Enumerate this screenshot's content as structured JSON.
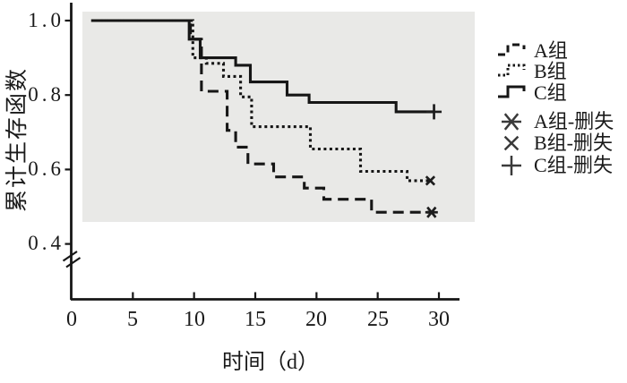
{
  "figure": {
    "background": "#ffffff",
    "plot_background": "#e9e9e7",
    "line_color": "#161616",
    "marker_color": "#3a3a3a",
    "text_color": "#1a1a1a"
  },
  "y_axis": {
    "label": "累计生存函数",
    "ticks": [
      "1.0",
      "0.8",
      "0.6",
      "0.4"
    ],
    "tick_values": [
      1.0,
      0.8,
      0.6,
      0.4
    ],
    "axis_break": true
  },
  "x_axis": {
    "label": "时间（d）",
    "ticks": [
      "0",
      "5",
      "10",
      "15",
      "20",
      "25",
      "30"
    ],
    "tick_values": [
      0,
      5,
      10,
      15,
      20,
      25,
      30
    ]
  },
  "legend": {
    "items": [
      {
        "label": "A组",
        "type": "line",
        "dash": "dashed"
      },
      {
        "label": "B组",
        "type": "line",
        "dash": "dotted"
      },
      {
        "label": "C组",
        "type": "line",
        "dash": "solid"
      },
      {
        "label": "A组-删失",
        "type": "marker",
        "marker": "star"
      },
      {
        "label": "B组-删失",
        "type": "marker",
        "marker": "x"
      },
      {
        "label": "C组-删失",
        "type": "marker",
        "marker": "plus"
      }
    ]
  },
  "chart_data": {
    "type": "line",
    "subtype": "kaplan-meier-step",
    "title": "",
    "xlabel": "时间（d）",
    "ylabel": "累计生存函数",
    "xlim": [
      0,
      31.7
    ],
    "ylim_shown": [
      0.4,
      1.0
    ],
    "axis_break_below": 0.4,
    "grid": false,
    "legend_position": "right",
    "series": [
      {
        "name": "C组",
        "style": "solid",
        "censor_marker": "plus",
        "start": [
          1.6,
          1.0
        ],
        "steps": [
          [
            9.6,
            0.95
          ],
          [
            10.5,
            0.9
          ],
          [
            13.4,
            0.88
          ],
          [
            14.6,
            0.835
          ],
          [
            17.6,
            0.8
          ],
          [
            19.4,
            0.78
          ],
          [
            26.5,
            0.755
          ]
        ],
        "end_t": 29.6,
        "censored_at": [
          [
            29.6,
            0.755
          ]
        ]
      },
      {
        "name": "B组",
        "style": "dotted",
        "censor_marker": "x",
        "start": [
          1.6,
          1.0
        ],
        "steps": [
          [
            9.9,
            0.9
          ],
          [
            11.0,
            0.885
          ],
          [
            12.4,
            0.85
          ],
          [
            13.8,
            0.795
          ],
          [
            14.7,
            0.715
          ],
          [
            19.5,
            0.655
          ],
          [
            23.6,
            0.595
          ],
          [
            27.4,
            0.57
          ]
        ],
        "end_t": 29.3,
        "censored_at": [
          [
            29.3,
            0.57
          ]
        ]
      },
      {
        "name": "A组",
        "style": "dashed",
        "censor_marker": "star",
        "start": [
          1.6,
          1.0
        ],
        "steps": [
          [
            9.7,
            0.95
          ],
          [
            10.6,
            0.81
          ],
          [
            12.7,
            0.705
          ],
          [
            13.4,
            0.66
          ],
          [
            14.4,
            0.615
          ],
          [
            16.5,
            0.58
          ],
          [
            19.0,
            0.55
          ],
          [
            20.6,
            0.52
          ],
          [
            24.5,
            0.485
          ]
        ],
        "end_t": 29.4,
        "censored_at": [
          [
            29.4,
            0.485
          ]
        ]
      }
    ]
  }
}
